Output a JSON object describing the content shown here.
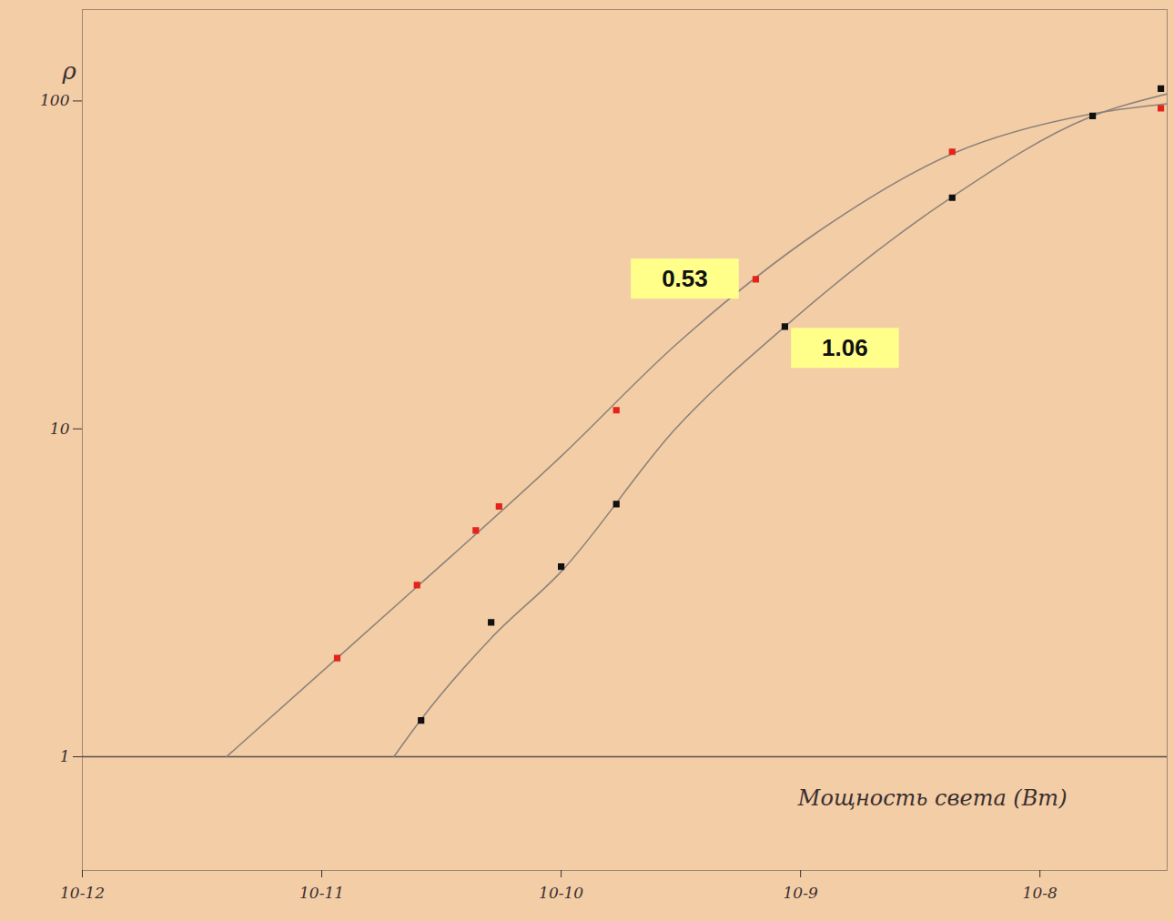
{
  "chart_data": {
    "type": "scatter",
    "x_label": "Мощность света (Вт)",
    "y_label": "ρ",
    "log": true,
    "grid": false,
    "marker": "square",
    "xlim": [
      1e-12,
      3.4e-08
    ],
    "ylim": [
      0.45,
      190
    ],
    "xticks": [
      {
        "value": 1e-12,
        "label": "10-12"
      },
      {
        "value": 1e-11,
        "label": "10-11"
      },
      {
        "value": 1e-10,
        "label": "10-10"
      },
      {
        "value": 1e-09,
        "label": "10-9"
      },
      {
        "value": 1e-08,
        "label": "10-8"
      }
    ],
    "yticks": [
      1,
      10,
      100
    ],
    "baseline": 1,
    "series": [
      {
        "name": "0.53",
        "color": "#e3241b",
        "x": [
          1.16e-11,
          2.5e-11,
          4.4e-11,
          5.5e-11,
          1.7e-10,
          6.5e-10,
          4.3e-09,
          3.2e-08
        ],
        "values": [
          2.0,
          3.34,
          4.9,
          5.8,
          11.4,
          28.6,
          70,
          95
        ],
        "fit_x": [
          4e-12,
          1.16e-11,
          2.5e-11,
          1e-10,
          3e-10,
          1.17e-09,
          4.3e-09,
          1.6e-08,
          3.4e-08
        ],
        "fit_values": [
          1,
          2.0,
          3.3,
          8.25,
          18,
          39.7,
          69,
          91,
          98
        ]
      },
      {
        "name": "1.06",
        "color": "#111111",
        "x": [
          2.6e-11,
          5.1e-11,
          1e-10,
          1.7e-10,
          8.6e-10,
          4.3e-09,
          1.66e-08,
          3.2e-08
        ],
        "values": [
          1.29,
          2.57,
          3.8,
          5.9,
          20.5,
          50.7,
          90,
          109
        ],
        "fit_x": [
          2e-11,
          2.6e-11,
          5.1e-11,
          1e-10,
          3e-10,
          8.6e-10,
          4.3e-09,
          1.6e-08,
          3.4e-08
        ],
        "fit_values": [
          1,
          1.3,
          2.3,
          3.67,
          10,
          20.5,
          51,
          89,
          105
        ]
      }
    ]
  }
}
